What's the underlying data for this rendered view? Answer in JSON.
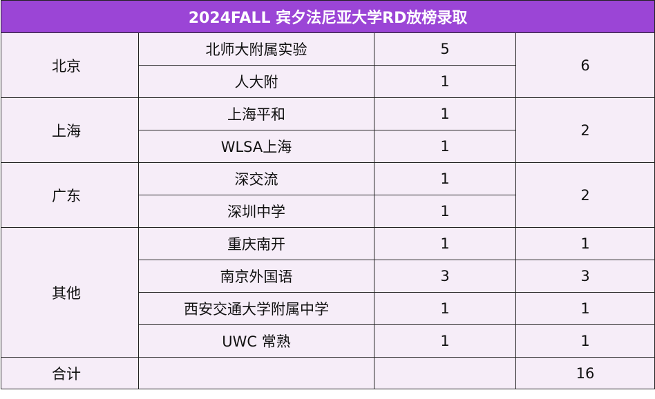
{
  "title": "2024FALL 宾夕法尼亚大学RD放榜录取",
  "groups": [
    {
      "region": "北京",
      "subtotal": "6",
      "rows": [
        {
          "school": "北师大附属实验",
          "count": "5"
        },
        {
          "school": "人大附",
          "count": "1"
        }
      ]
    },
    {
      "region": "上海",
      "subtotal": "2",
      "rows": [
        {
          "school": "上海平和",
          "count": "1"
        },
        {
          "school": "WLSA上海",
          "count": "1"
        }
      ]
    },
    {
      "region": "广东",
      "subtotal": "2",
      "rows": [
        {
          "school": "深交流",
          "count": "1"
        },
        {
          "school": "深圳中学",
          "count": "1"
        }
      ]
    },
    {
      "region": "其他",
      "rows": [
        {
          "school": "重庆南开",
          "count": "1",
          "subtotal": "1"
        },
        {
          "school": "南京外国语",
          "count": "3",
          "subtotal": "3"
        },
        {
          "school": "西安交通大学附属中学",
          "count": "1",
          "subtotal": "1"
        },
        {
          "school": "UWC 常熟",
          "count": "1",
          "subtotal": "1"
        }
      ]
    }
  ],
  "total": {
    "label": "合计",
    "value": "16"
  },
  "colors": {
    "header_bg": "#9b45d6",
    "header_text": "#ffffff",
    "body_bg": "#f6edf8",
    "border": "#222222"
  }
}
